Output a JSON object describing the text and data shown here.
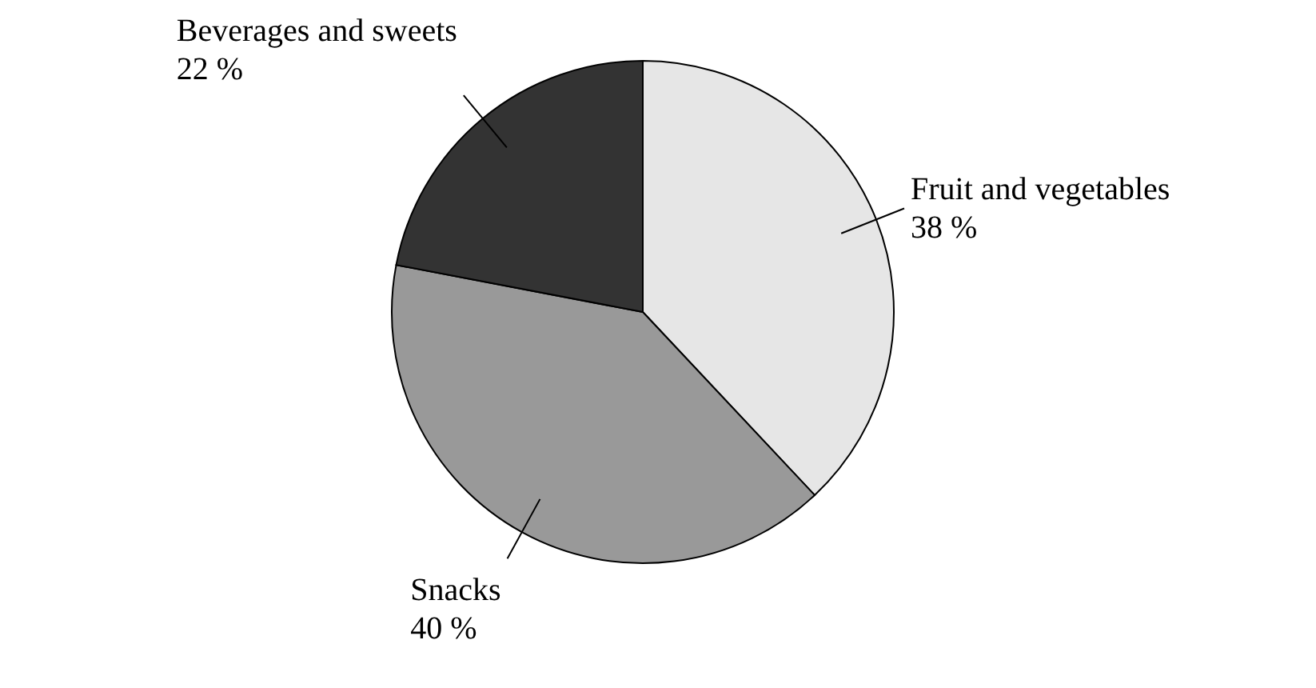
{
  "chart_data": {
    "type": "pie",
    "categories": [
      "Fruit and vegetables",
      "Snacks",
      "Beverages and sweets"
    ],
    "values": [
      38,
      40,
      22
    ],
    "colors": [
      "#e6e6e6",
      "#999999",
      "#333333"
    ],
    "value_labels": [
      "38 %",
      "40 %",
      "22 %"
    ]
  }
}
